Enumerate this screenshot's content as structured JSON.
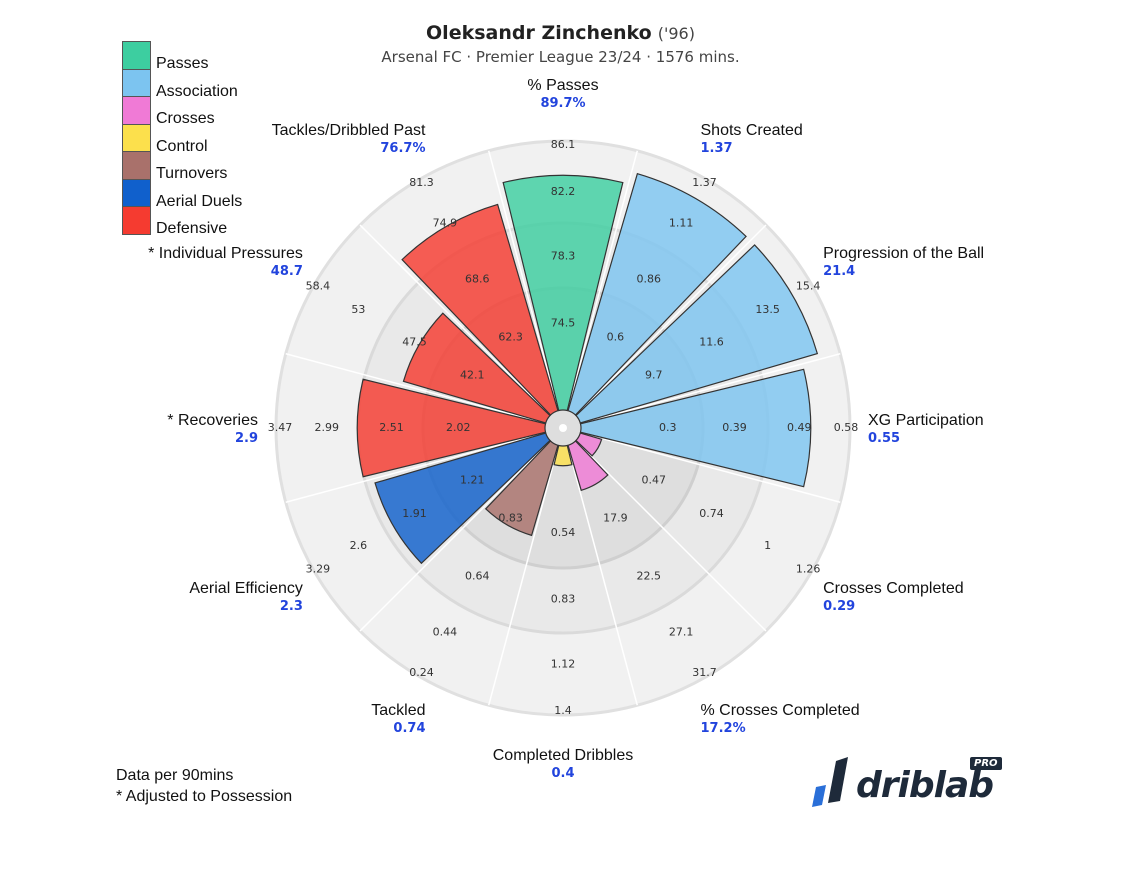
{
  "header": {
    "player_name": "Oleksandr Zinchenko",
    "player_year": "('96)",
    "subtitle": "Arsenal FC · Premier League 23/24 · 1576 mins."
  },
  "legend": [
    {
      "label": "Passes",
      "color": "#3dcea0"
    },
    {
      "label": "Association",
      "color": "#7cc4f0"
    },
    {
      "label": "Crosses",
      "color": "#f07ad6"
    },
    {
      "label": "Control",
      "color": "#fce04c"
    },
    {
      "label": "Turnovers",
      "color": "#a9716b"
    },
    {
      "label": "Aerial Duels",
      "color": "#1060cc"
    },
    {
      "label": "Defensive",
      "color": "#f53b30"
    }
  ],
  "footnote": {
    "line1": "Data per 90mins",
    "line2": "* Adjusted to Possession"
  },
  "logo": {
    "text": "driblab",
    "badge": "PRO"
  },
  "chart_data": {
    "type": "polar-bar",
    "categories": [
      {
        "name": "% Passes",
        "value_label": "89.7%",
        "group": "Passes",
        "percentile": 0.95,
        "ticks": [
          "74.5",
          "78.3",
          "82.2",
          "86.1"
        ]
      },
      {
        "name": "Shots Created",
        "value_label": "1.37",
        "group": "Association",
        "percentile": 1.0,
        "ticks": [
          "0.6",
          "0.86",
          "1.11",
          "1.37"
        ]
      },
      {
        "name": "Progression of the Ball",
        "value_label": "21.4",
        "group": "Association",
        "percentile": 1.0,
        "ticks": [
          "9.7",
          "11.6",
          "13.5",
          "15.4"
        ]
      },
      {
        "name": "XG Participation",
        "value_label": "0.55",
        "group": "Association",
        "percentile": 0.93,
        "ticks": [
          "0.3",
          "0.39",
          "0.49",
          "0.58"
        ]
      },
      {
        "name": "Crosses Completed",
        "value_label": "0.29",
        "group": "Crosses",
        "percentile": 0.09,
        "ticks": [
          "0.47",
          "0.74",
          "1",
          "1.26"
        ]
      },
      {
        "name": "% Crosses Completed",
        "value_label": "17.2%",
        "group": "Crosses",
        "percentile": 0.19,
        "ticks": [
          "17.9",
          "22.5",
          "27.1",
          "31.7"
        ]
      },
      {
        "name": "Completed Dribbles",
        "value_label": "0.4",
        "group": "Control",
        "percentile": 0.08,
        "ticks": [
          "0.54",
          "0.83",
          "1.12",
          "1.4"
        ]
      },
      {
        "name": "Tackled",
        "value_label": "0.74",
        "group": "Turnovers",
        "percentile": 0.38,
        "ticks": [
          "0.83",
          "0.64",
          "0.44",
          "0.24"
        ]
      },
      {
        "name": "Aerial Efficiency",
        "value_label": "2.3",
        "group": "Aerial Duels",
        "percentile": 0.72,
        "ticks": [
          "1.21",
          "1.91",
          "2.6",
          "3.29"
        ]
      },
      {
        "name": "* Recoveries",
        "value_label": "2.9",
        "group": "Defensive",
        "percentile": 0.76,
        "ticks": [
          "2.02",
          "2.51",
          "2.99",
          "3.47"
        ]
      },
      {
        "name": "* Individual Pressures",
        "value_label": "48.7",
        "group": "Defensive",
        "percentile": 0.6,
        "ticks": [
          "42.1",
          "47.5",
          "53",
          "58.4"
        ]
      },
      {
        "name": "Tackles/Dribbled Past",
        "value_label": "76.7%",
        "group": "Defensive",
        "percentile": 0.87,
        "ticks": [
          "62.3",
          "68.6",
          "74.9",
          "81.3"
        ]
      }
    ]
  }
}
